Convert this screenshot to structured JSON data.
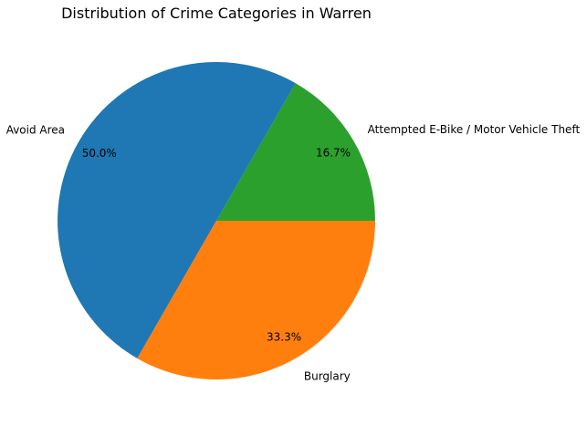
{
  "chart_data": {
    "type": "pie",
    "title": "Distribution of Crime Categories in Warren",
    "categories": [
      "Attempted E-Bike / Motor Vehicle Theft",
      "Avoid Area",
      "Burglary"
    ],
    "values": [
      16.7,
      50.0,
      33.3
    ],
    "percent_labels": [
      "16.7%",
      "50.0%",
      "33.3%"
    ],
    "colors": [
      "#2ca02c",
      "#1f77b4",
      "#ff7f0e"
    ],
    "start_angle_deg": 0,
    "direction": "counterclockwise",
    "legend": "none"
  }
}
